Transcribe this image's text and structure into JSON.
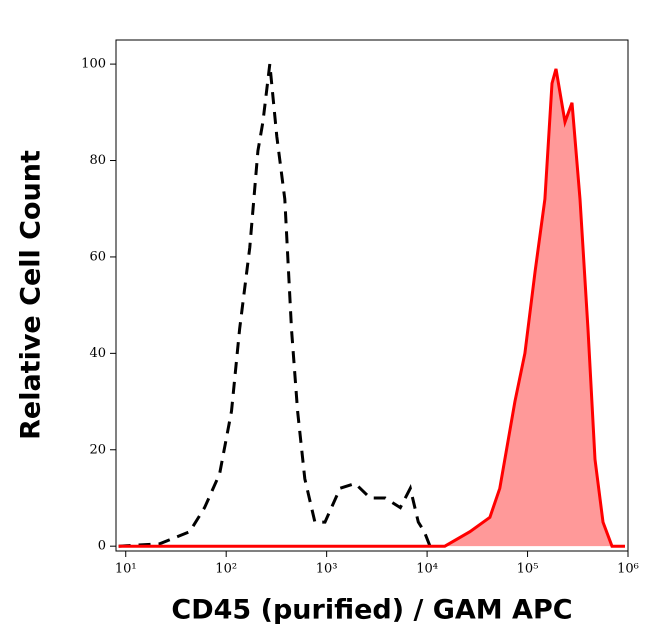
{
  "chart_data": {
    "type": "line",
    "xlabel": "CD45 (purified) / GAM APC",
    "ylabel": "Relative Cell Count",
    "xscale": "log",
    "xlim": [
      8,
      1000000
    ],
    "ylim": [
      -1,
      105
    ],
    "xticks": [
      {
        "value": 10,
        "label": "10¹"
      },
      {
        "value": 100,
        "label": "10²"
      },
      {
        "value": 1000,
        "label": "10³"
      },
      {
        "value": 10000,
        "label": "10⁴"
      },
      {
        "value": 100000,
        "label": "10⁵"
      },
      {
        "value": 1000000,
        "label": "10⁶"
      }
    ],
    "yticks": [
      0,
      20,
      40,
      60,
      80,
      100
    ],
    "series": [
      {
        "color": "#000000",
        "dashed": true,
        "x": [
          8.5,
          21.8,
          43.3,
          61,
          86,
          113,
          136,
          172,
          207,
          232,
          272,
          319,
          383,
          447,
          514,
          606,
          764,
          962,
          1360,
          1920,
          2715,
          3830,
          5410,
          6800,
          8170,
          9370,
          10700
        ],
        "values": [
          0,
          0.5,
          3,
          8,
          15,
          28,
          45,
          62,
          82,
          88,
          100,
          85,
          72,
          45,
          28,
          14,
          5,
          5,
          12,
          13,
          10,
          10,
          8,
          12,
          5,
          3,
          0
        ]
      },
      {
        "color": "#ff0000",
        "fill": "#ff9999",
        "x": [
          8.5,
          15000,
          26700,
          42200,
          53000,
          74900,
          94200,
          119000,
          149000,
          175000,
          192000,
          236000,
          277000,
          333000,
          400000,
          469000,
          564000,
          693000,
          933000
        ],
        "values": [
          0,
          0,
          3,
          6,
          12,
          30,
          40,
          57,
          72,
          96,
          99,
          88,
          92,
          72,
          45,
          18,
          5,
          0,
          0
        ]
      }
    ]
  }
}
